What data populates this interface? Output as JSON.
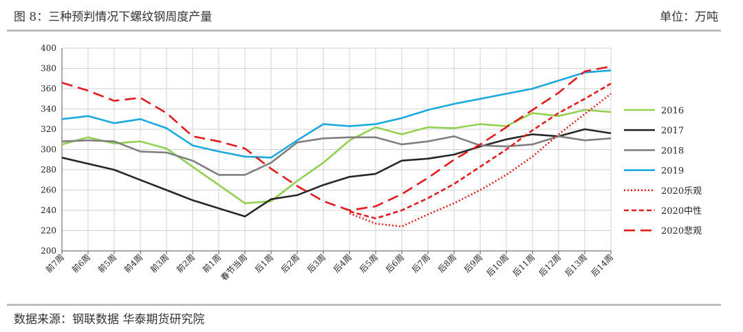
{
  "header": {
    "title": "图 8：三种预判情况下螺纹钢周度产量",
    "unit": "单位：万吨"
  },
  "footer": {
    "source": "数据来源：钢联数据  华泰期货研究院"
  },
  "chart_data": {
    "type": "line",
    "title": "",
    "xlabel": "",
    "ylabel": "",
    "ylim": [
      200,
      400
    ],
    "ytick_step": 20,
    "grid": true,
    "legend_position": "right",
    "categories": [
      "前7周",
      "前6周",
      "前5周",
      "前4周",
      "前3周",
      "前2周",
      "前1周",
      "春节当周",
      "后1周",
      "后2周",
      "后3周",
      "后4周",
      "后5周",
      "后6周",
      "后7周",
      "后8周",
      "后9周",
      "后10周",
      "后11周",
      "后12周",
      "后13周",
      "后14周"
    ],
    "series": [
      {
        "name": "2016",
        "color": "#92d050",
        "dash": "solid",
        "values": [
          305,
          312,
          306,
          308,
          301,
          283,
          265,
          247,
          249,
          269,
          287,
          309,
          322,
          315,
          322,
          321,
          325,
          323,
          336,
          333,
          339,
          337
        ]
      },
      {
        "name": "2017",
        "color": "#262626",
        "dash": "solid",
        "values": [
          292,
          286,
          280,
          270,
          260,
          250,
          242,
          234,
          251,
          255,
          265,
          273,
          276,
          289,
          291,
          295,
          303,
          310,
          315,
          313,
          320,
          316
        ]
      },
      {
        "name": "2018",
        "color": "#7f7f7f",
        "dash": "solid",
        "values": [
          308,
          309,
          308,
          298,
          297,
          289,
          275,
          275,
          287,
          307,
          311,
          312,
          312,
          305,
          308,
          313,
          304,
          303,
          305,
          313,
          309,
          311
        ]
      },
      {
        "name": "2019",
        "color": "#1aa8dd",
        "dash": "solid",
        "values": [
          330,
          333,
          326,
          330,
          321,
          304,
          298,
          293,
          292,
          309,
          325,
          323,
          325,
          331,
          339,
          345,
          350,
          355,
          360,
          368,
          376,
          378
        ]
      },
      {
        "name": "2020乐观",
        "color": "#e31a1c",
        "dash": "dotted",
        "values": [
          null,
          null,
          null,
          null,
          null,
          null,
          null,
          null,
          null,
          null,
          null,
          237,
          227,
          224,
          236,
          247,
          260,
          275,
          293,
          315,
          335,
          355
        ]
      },
      {
        "name": "2020中性",
        "color": "#e31a1c",
        "dash": "dashed",
        "values": [
          null,
          null,
          null,
          null,
          null,
          null,
          null,
          null,
          null,
          null,
          null,
          239,
          232,
          240,
          252,
          266,
          283,
          300,
          319,
          336,
          350,
          365
        ]
      },
      {
        "name": "2020悲观",
        "color": "#e31a1c",
        "dash": "longdash",
        "values": [
          366,
          358,
          348,
          351,
          336,
          313,
          308,
          301,
          281,
          264,
          249,
          240,
          244,
          256,
          272,
          290,
          305,
          322,
          339,
          356,
          377,
          382
        ]
      }
    ]
  }
}
